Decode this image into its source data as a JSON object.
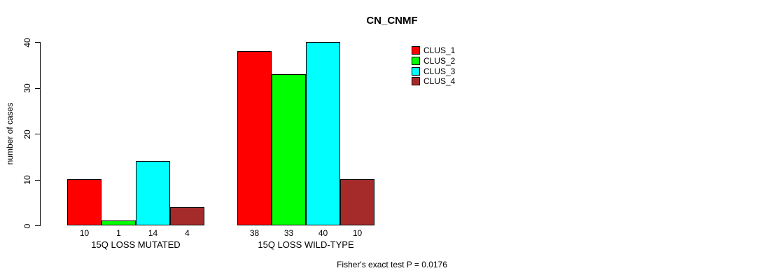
{
  "title": "CN_CNMF",
  "y_axis": {
    "label": "number of cases",
    "ticks": [
      0,
      10,
      20,
      30,
      40
    ]
  },
  "footnote": "Fisher's exact test P = 0.0176",
  "legend": {
    "items": [
      {
        "label": "CLUS_1",
        "color": "#FF0000"
      },
      {
        "label": "CLUS_2",
        "color": "#00FF00"
      },
      {
        "label": "CLUS_3",
        "color": "#00FFFF"
      },
      {
        "label": "CLUS_4",
        "color": "#A52A2A"
      }
    ]
  },
  "chart_data": {
    "type": "bar",
    "title": "CN_CNMF",
    "xlabel": "",
    "ylabel": "number of cases",
    "ylim": [
      0,
      40
    ],
    "yticks": [
      0,
      10,
      20,
      30,
      40
    ],
    "grid": false,
    "legend_position": "top-right",
    "categories": [
      "15Q LOSS MUTATED",
      "15Q LOSS WILD-TYPE"
    ],
    "series": [
      {
        "name": "CLUS_1",
        "color": "#FF0000",
        "values": [
          10,
          38
        ]
      },
      {
        "name": "CLUS_2",
        "color": "#00FF00",
        "values": [
          1,
          33
        ]
      },
      {
        "name": "CLUS_3",
        "color": "#00FFFF",
        "values": [
          14,
          40
        ]
      },
      {
        "name": "CLUS_4",
        "color": "#A52A2A",
        "values": [
          4,
          10
        ]
      }
    ],
    "bar_value_labels": [
      [
        10,
        1,
        14,
        4
      ],
      [
        38,
        33,
        40,
        10
      ]
    ],
    "annotation": "Fisher's exact test P = 0.0176"
  }
}
